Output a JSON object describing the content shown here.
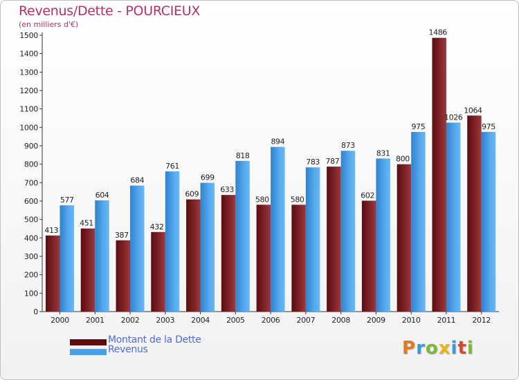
{
  "title": "Revenus/Dette - POURCIEUX",
  "subtitle": "(en milliers d'€)",
  "chart_data": {
    "type": "bar",
    "title": "Revenus/Dette - POURCIEUX",
    "subtitle": "(en milliers d'€)",
    "xlabel": "",
    "ylabel": "",
    "ylim": [
      0,
      1500
    ],
    "yticks": [
      0,
      100,
      200,
      300,
      400,
      500,
      600,
      700,
      800,
      900,
      1000,
      1100,
      1200,
      1300,
      1400,
      1500
    ],
    "grid": false,
    "legend_position": "bottom-left",
    "categories": [
      "2000",
      "2001",
      "2002",
      "2003",
      "2004",
      "2005",
      "2006",
      "2007",
      "2008",
      "2009",
      "2010",
      "2011",
      "2012"
    ],
    "series": [
      {
        "name": "Montant de la Dette",
        "color": "#7a1c20",
        "values": [
          413,
          451,
          387,
          432,
          609,
          633,
          580,
          580,
          787,
          602,
          800,
          1486,
          1064
        ]
      },
      {
        "name": "Revenus",
        "color": "#4aa0e6",
        "values": [
          577,
          604,
          684,
          761,
          699,
          818,
          894,
          783,
          873,
          831,
          975,
          1026,
          975
        ]
      }
    ]
  },
  "legend": [
    {
      "label": "Montant de la Dette",
      "color": "#5e0c0e"
    },
    {
      "label": "Revenus",
      "color": "#4aa0e6"
    }
  ],
  "logo": {
    "letters": [
      "P",
      "r",
      "o",
      "x",
      "i",
      "t",
      "i"
    ],
    "colors": [
      "#e07a1e",
      "#3a9ad9",
      "#7bb83a",
      "#e8b619",
      "#3a9ad9",
      "#d9442c",
      "#7bb83a"
    ]
  }
}
